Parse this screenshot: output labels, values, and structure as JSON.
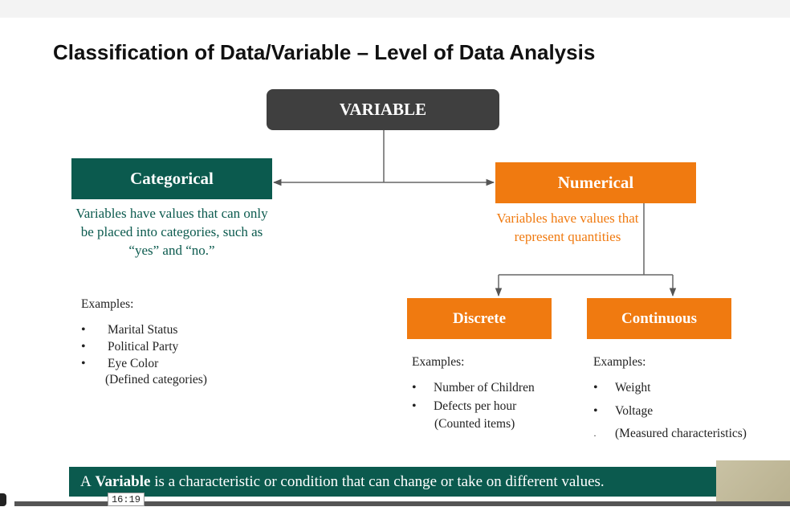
{
  "title": "Classification of Data/Variable – Level of Data Analysis",
  "nodes": {
    "variable": "VARIABLE",
    "categorical": "Categorical",
    "numerical": "Numerical",
    "discrete": "Discrete",
    "continuous": "Continuous"
  },
  "descriptions": {
    "categorical": "Variables have values that can only be placed into categories, such as “yes” and “no.”",
    "numerical": "Variables have values that represent quantities"
  },
  "categorical_examples": {
    "label": "Examples:",
    "items": [
      "Marital Status",
      "Political Party",
      "Eye Color"
    ],
    "note": "(Defined categories)"
  },
  "discrete_examples": {
    "label": "Examples:",
    "items": [
      "Number of Children",
      "Defects per hour"
    ],
    "note": "(Counted items)"
  },
  "continuous_examples": {
    "label": "Examples:",
    "items": [
      "Weight",
      "Voltage"
    ],
    "note": "(Measured characteristics)"
  },
  "footer": {
    "prefix": "A",
    "bold": "Variable",
    "rest": "is a characteristic or condition that can change or take on different values."
  },
  "video": {
    "timestamp": "16:19"
  },
  "colors": {
    "categorical": "#0b5a4e",
    "numerical": "#f07a10",
    "variable": "#3f3f3f"
  }
}
